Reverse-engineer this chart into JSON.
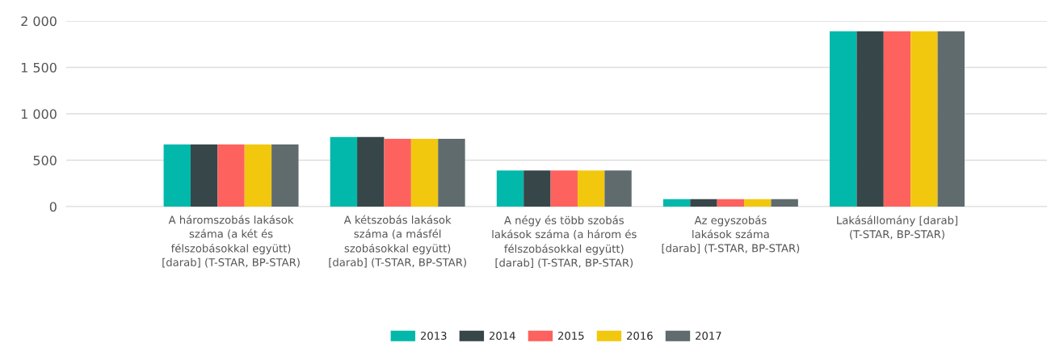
{
  "chart_data": {
    "type": "bar",
    "categories": [
      "A háromszobás lakások\nszáma (a két és\nfélszobásokkal együtt)\n[darab] (T-STAR, BP-STAR)",
      "A kétszobás lakások\nszáma (a másfél\nszobásokkal együtt)\n[darab] (T-STAR, BP-STAR)",
      "A négy és több szobás\nlakások száma (a három és\nfélszobásokkal együtt)\n[darab] (T-STAR, BP-STAR)",
      "Az egyszobás\nlakások száma\n[darab] (T-STAR, BP-STAR)",
      "Lakásállomány [darab]\n(T-STAR, BP-STAR)"
    ],
    "series": [
      {
        "name": "2013",
        "color": "#01b8aa",
        "values": [
          670,
          750,
          390,
          80,
          1890
        ]
      },
      {
        "name": "2014",
        "color": "#374649",
        "values": [
          670,
          750,
          390,
          80,
          1890
        ]
      },
      {
        "name": "2015",
        "color": "#fd625e",
        "values": [
          670,
          730,
          390,
          80,
          1890
        ]
      },
      {
        "name": "2016",
        "color": "#f2c80f",
        "values": [
          670,
          730,
          390,
          80,
          1890
        ]
      },
      {
        "name": "2017",
        "color": "#5f6b6d",
        "values": [
          670,
          730,
          390,
          80,
          1890
        ]
      }
    ],
    "ylim": [
      0,
      2000
    ],
    "yticks": [
      0,
      {
        "value": 500,
        "label": "500"
      },
      {
        "value": 1000,
        "label": "1 000"
      },
      {
        "value": 1500,
        "label": "1 500"
      },
      {
        "value": 2000,
        "label": "2 000"
      }
    ],
    "grid": "y",
    "legend": "bottom"
  }
}
